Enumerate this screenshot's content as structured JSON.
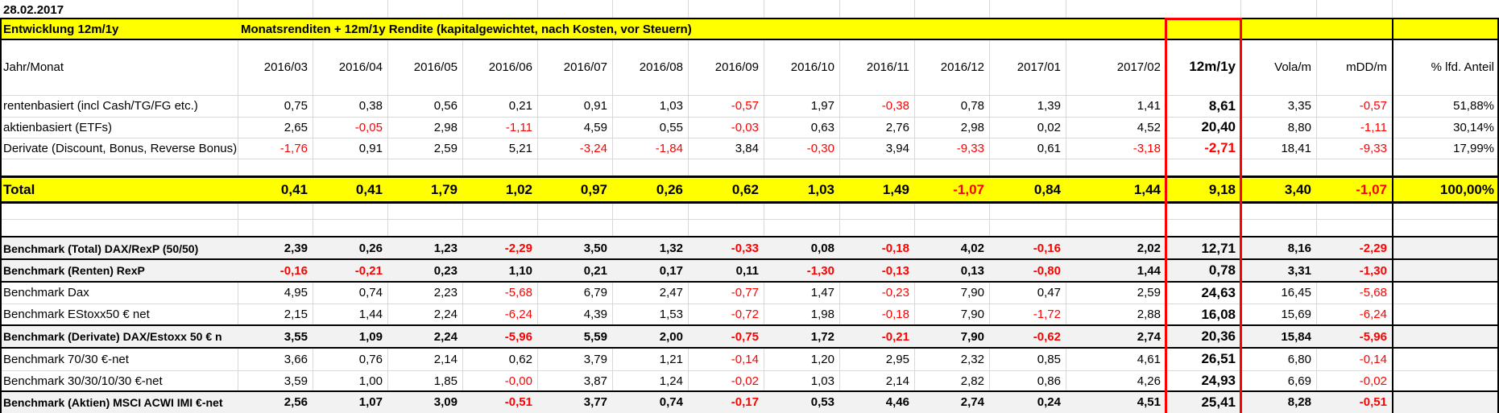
{
  "date": "28.02.2017",
  "title_left": "Entwicklung   12m/1y",
  "title_right": "Monatsrenditen + 12m/1y  Rendite (kapitalgewichtet, nach Kosten, vor Steuern)",
  "headers": {
    "label": "Jahr/Monat",
    "months": [
      "2016/03",
      "2016/04",
      "2016/05",
      "2016/06",
      "2016/07",
      "2016/08",
      "2016/09",
      "2016/10",
      "2016/11",
      "2016/12",
      "2017/01",
      "2017/02"
    ],
    "y12": "12m/1y",
    "vola": "Vola/m",
    "mdd": "mDD/m",
    "anteil": "% lfd. Anteil"
  },
  "rows": [
    {
      "label": "rentenbasiert (incl Cash/TG/FG etc.)",
      "months": [
        "0,75",
        "0,38",
        "0,56",
        "0,21",
        "0,91",
        "1,03",
        "-0,57",
        "1,97",
        "-0,38",
        "0,78",
        "1,39",
        "1,41"
      ],
      "y12": "8,61",
      "vola": "3,35",
      "mdd": "-0,57",
      "anteil": "51,88%"
    },
    {
      "label": "aktienbasiert (ETFs)",
      "months": [
        "2,65",
        "-0,05",
        "2,98",
        "-1,11",
        "4,59",
        "0,55",
        "-0,03",
        "0,63",
        "2,76",
        "2,98",
        "0,02",
        "4,52"
      ],
      "y12": "20,40",
      "vola": "8,80",
      "mdd": "-1,11",
      "anteil": "30,14%"
    },
    {
      "label": "Derivate (Discount, Bonus, Reverse Bonus)",
      "months": [
        "-1,76",
        "0,91",
        "2,59",
        "5,21",
        "-3,24",
        "-1,84",
        "3,84",
        "-0,30",
        "3,94",
        "-9,33",
        "0,61",
        "-3,18"
      ],
      "y12": "-2,71",
      "vola": "18,41",
      "mdd": "-9,33",
      "anteil": "17,99%"
    }
  ],
  "total": {
    "label": "Total",
    "months": [
      "0,41",
      "0,41",
      "1,79",
      "1,02",
      "0,97",
      "0,26",
      "0,62",
      "1,03",
      "1,49",
      "-1,07",
      "0,84",
      "1,44"
    ],
    "y12": "9,18",
    "vola": "3,40",
    "mdd": "-1,07",
    "anteil": "100,00%"
  },
  "benchmarks": [
    {
      "label": "Benchmark (Total) DAX/RexP (50/50)",
      "months": [
        "2,39",
        "0,26",
        "1,23",
        "-2,29",
        "3,50",
        "1,32",
        "-0,33",
        "0,08",
        "-0,18",
        "4,02",
        "-0,16",
        "2,02"
      ],
      "y12": "12,71",
      "vola": "8,16",
      "mdd": "-2,29"
    },
    {
      "label": "Benchmark (Renten) RexP",
      "months": [
        "-0,16",
        "-0,21",
        "0,23",
        "1,10",
        "0,21",
        "0,17",
        "0,11",
        "-1,30",
        "-0,13",
        "0,13",
        "-0,80",
        "1,44"
      ],
      "y12": "0,78",
      "vola": "3,31",
      "mdd": "-1,30"
    },
    {
      "label": "Benchmark Dax",
      "months": [
        "4,95",
        "0,74",
        "2,23",
        "-5,68",
        "6,79",
        "2,47",
        "-0,77",
        "1,47",
        "-0,23",
        "7,90",
        "0,47",
        "2,59"
      ],
      "y12": "24,63",
      "vola": "16,45",
      "mdd": "-5,68"
    },
    {
      "label": "Benchmark EStoxx50 € net",
      "months": [
        "2,15",
        "1,44",
        "2,24",
        "-6,24",
        "4,39",
        "1,53",
        "-0,72",
        "1,98",
        "-0,18",
        "7,90",
        "-1,72",
        "2,88"
      ],
      "y12": "16,08",
      "vola": "15,69",
      "mdd": "-6,24"
    },
    {
      "label": "Benchmark (Derivate)  DAX/Estoxx 50 € n",
      "months": [
        "3,55",
        "1,09",
        "2,24",
        "-5,96",
        "5,59",
        "2,00",
        "-0,75",
        "1,72",
        "-0,21",
        "7,90",
        "-0,62",
        "2,74"
      ],
      "y12": "20,36",
      "vola": "15,84",
      "mdd": "-5,96"
    },
    {
      "label": "Benchmark 70/30 €-net",
      "months": [
        "3,66",
        "0,76",
        "2,14",
        "0,62",
        "3,79",
        "1,21",
        "-0,14",
        "1,20",
        "2,95",
        "2,32",
        "0,85",
        "4,61"
      ],
      "y12": "26,51",
      "vola": "6,80",
      "mdd": "-0,14"
    },
    {
      "label": "Benchmark 30/30/10/30 €-net",
      "months": [
        "3,59",
        "1,00",
        "1,85",
        "-0,00",
        "3,87",
        "1,24",
        "-0,02",
        "1,03",
        "2,14",
        "2,82",
        "0,86",
        "4,26"
      ],
      "y12": "24,93",
      "vola": "6,69",
      "mdd": "-0,02"
    },
    {
      "label": "Benchmark (Aktien) MSCI ACWI IMI €-net",
      "months": [
        "2,56",
        "1,07",
        "3,09",
        "-0,51",
        "3,77",
        "0,74",
        "-0,17",
        "0,53",
        "4,46",
        "2,74",
        "0,24",
        "4,51"
      ],
      "y12": "25,41",
      "vola": "8,28",
      "mdd": "-0,51"
    }
  ],
  "colors": {
    "highlight": "#ffff00",
    "negative": "#ff0000",
    "benchmark_bold_bg": "#f2f2f2",
    "column_frame": "#ff0000"
  }
}
